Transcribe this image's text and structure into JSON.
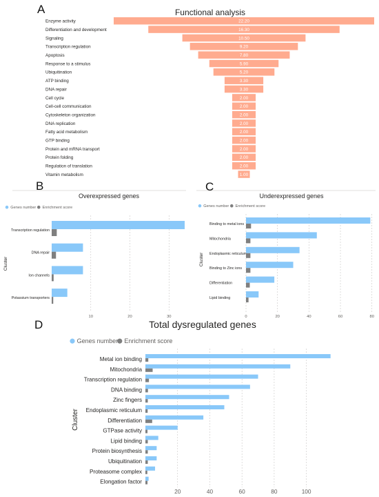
{
  "colors": {
    "funnel": "#ffab8f",
    "genes": "#89c8f9",
    "enrichment": "#7f7f7f"
  },
  "chart_data": [
    {
      "panel": "A",
      "type": "bar",
      "title": "Functional analysis",
      "categories": [
        "Enzyme activity",
        "Differentiation and development",
        "Signaling",
        "Transcription regulation",
        "Apoptosis",
        "Response to a stimulus",
        "Ubiquitination",
        "ATP binding",
        "DNA repair",
        "Cell cycle",
        "Cell-cell communication",
        "Cytoskeleton organization",
        "DNA replication",
        "Fatty acid metabolism",
        "GTP binding",
        "Protein and mRNA transport",
        "Protein folding",
        "Regulation of translation",
        "Vitamin metabolism"
      ],
      "values": [
        22.2,
        16.3,
        10.5,
        9.2,
        7.8,
        5.9,
        5.2,
        3.3,
        3.3,
        2.0,
        2.0,
        2.0,
        2.0,
        2.0,
        2.0,
        2.0,
        2.0,
        2.0,
        1.0
      ],
      "value_labels": [
        "22.20",
        "16.30",
        "10.50",
        "9.20",
        "7.80",
        "5.90",
        "5.20",
        "3.30",
        "3.30",
        "2.00",
        "2.00",
        "2.00",
        "2.00",
        "2.00",
        "2.00",
        "2.00",
        "2.00",
        "2.00",
        "1.00"
      ]
    },
    {
      "panel": "B",
      "type": "bar",
      "title": "Overexpressed genes",
      "ylabel": "Cluster",
      "legend": [
        "Genes number",
        "Enrichment score"
      ],
      "categories": [
        "Transcription regulation",
        "DNA repair",
        "Ion channels",
        "Potassium transporters"
      ],
      "series": [
        {
          "name": "Genes number",
          "values": [
            34,
            8,
            8,
            4
          ]
        },
        {
          "name": "Enrichment score",
          "values": [
            1.3,
            1.1,
            0.5,
            0.4
          ]
        }
      ],
      "xticks": [
        10,
        20,
        30
      ],
      "xlim": [
        0,
        34
      ]
    },
    {
      "panel": "C",
      "type": "bar",
      "title": "Underexpressed genes",
      "ylabel": "Cluster",
      "legend": [
        "Genes number",
        "Enrichment score"
      ],
      "categories": [
        "Binding to metal ions",
        "Mitochondria",
        "Endoplasmic reticulum",
        "Binding to Zinc ions",
        "Differentiation",
        "Lipid binding"
      ],
      "series": [
        {
          "name": "Genes number",
          "values": [
            79,
            45,
            34,
            30,
            18,
            8
          ]
        },
        {
          "name": "Enrichment score",
          "values": [
            3.2,
            2.8,
            2.8,
            2.8,
            2.4,
            1.6
          ]
        }
      ],
      "xticks": [
        0,
        20,
        40,
        60,
        80
      ],
      "xlim": [
        0,
        81
      ]
    },
    {
      "panel": "D",
      "type": "bar",
      "title": "Total dysregulated genes",
      "ylabel": "Cluster",
      "legend": [
        "Genes number",
        "Enrichment score"
      ],
      "categories": [
        "Metal ion binding",
        "Mitochondria",
        "Transcription regulation",
        "DNA binding",
        "Zinc fingers",
        "Endoplasmic reticulum",
        "Differentiation",
        "GTPase activity",
        "Lipid binding",
        "Protein biosynthesis",
        "Ubiquitination",
        "Proteasome complex",
        "Elongation factor"
      ],
      "series": [
        {
          "name": "Genes number",
          "values": [
            115,
            90,
            70,
            65,
            52,
            49,
            36,
            20,
            8,
            7,
            7,
            6,
            2
          ]
        },
        {
          "name": "Enrichment score",
          "values": [
            1.8,
            4.5,
            2.2,
            1.6,
            1.5,
            1.4,
            4.2,
            1.3,
            1.5,
            1.5,
            1.5,
            1.2,
            1.3
          ]
        }
      ],
      "xticks": [
        20,
        40,
        60,
        80,
        100
      ],
      "xlim": [
        0,
        116
      ]
    }
  ]
}
